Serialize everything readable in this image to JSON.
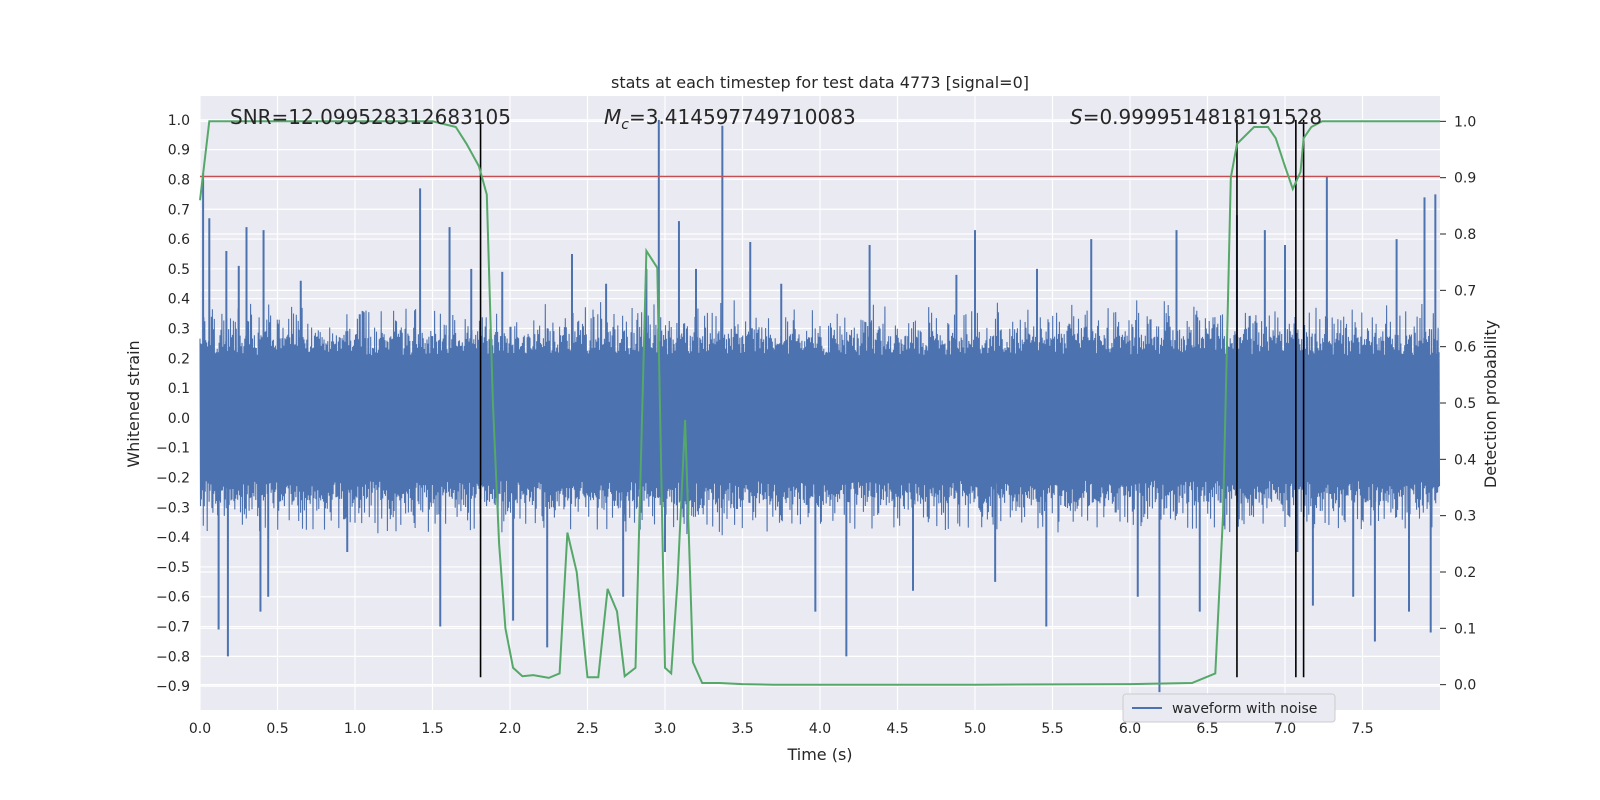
{
  "chart_data": {
    "type": "line",
    "title": "stats at each timestep for test data 4773 [signal=0]",
    "xlabel": "Time (s)",
    "ylabel": "Whitened strain",
    "y2label": "Detection probability",
    "xlim": [
      0.0,
      8.0
    ],
    "ylim": [
      -0.98,
      1.08
    ],
    "y2lim": [
      -0.045,
      1.045
    ],
    "xticks": [
      "0.0",
      "0.5",
      "1.0",
      "1.5",
      "2.0",
      "2.5",
      "3.0",
      "3.5",
      "4.0",
      "4.5",
      "5.0",
      "5.5",
      "6.0",
      "6.5",
      "7.0",
      "7.5"
    ],
    "yticks": [
      "-0.9",
      "-0.8",
      "-0.7",
      "-0.6",
      "-0.5",
      "-0.4",
      "-0.3",
      "-0.2",
      "-0.1",
      "0.0",
      "0.1",
      "0.2",
      "0.3",
      "0.4",
      "0.5",
      "0.6",
      "0.7",
      "0.8",
      "0.9",
      "1.0"
    ],
    "y2ticks": [
      "0.0",
      "0.1",
      "0.2",
      "0.3",
      "0.4",
      "0.5",
      "0.6",
      "0.7",
      "0.8",
      "0.9",
      "1.0"
    ],
    "grid": true,
    "legend": {
      "placement": "lower-right",
      "entries": [
        "waveform with noise"
      ]
    },
    "annotations": {
      "snr": "SNR=12.099528312683105",
      "mc_symbol": "M",
      "mc_sub": "c",
      "mc_value": "=3.414597749710083",
      "s_symbol": "S",
      "s_value": "=0.9999514818191528"
    },
    "series": [
      {
        "name": "waveform with noise",
        "color": "#4c72b0",
        "axis": "left",
        "kind": "noise",
        "base_envelope": 0.28,
        "duration": 8.0,
        "spikes": [
          {
            "x": 0.02,
            "y": 0.82
          },
          {
            "x": 0.06,
            "y": 0.67
          },
          {
            "x": 0.12,
            "y": -0.71
          },
          {
            "x": 0.17,
            "y": 0.56
          },
          {
            "x": 0.18,
            "y": -0.8
          },
          {
            "x": 0.25,
            "y": 0.51
          },
          {
            "x": 0.3,
            "y": 0.64
          },
          {
            "x": 0.39,
            "y": -0.65
          },
          {
            "x": 0.41,
            "y": 0.63
          },
          {
            "x": 0.44,
            "y": -0.6
          },
          {
            "x": 0.65,
            "y": 0.46
          },
          {
            "x": 0.95,
            "y": -0.45
          },
          {
            "x": 1.42,
            "y": 0.77
          },
          {
            "x": 1.55,
            "y": -0.7
          },
          {
            "x": 1.61,
            "y": 0.64
          },
          {
            "x": 1.75,
            "y": 0.5
          },
          {
            "x": 1.95,
            "y": 0.49
          },
          {
            "x": 2.02,
            "y": -0.68
          },
          {
            "x": 2.24,
            "y": -0.77
          },
          {
            "x": 2.4,
            "y": 0.55
          },
          {
            "x": 2.62,
            "y": 0.45
          },
          {
            "x": 2.73,
            "y": -0.6
          },
          {
            "x": 2.88,
            "y": 0.5
          },
          {
            "x": 2.96,
            "y": 1.0
          },
          {
            "x": 3.0,
            "y": -0.45
          },
          {
            "x": 3.09,
            "y": 0.66
          },
          {
            "x": 3.2,
            "y": 0.5
          },
          {
            "x": 3.37,
            "y": 0.98
          },
          {
            "x": 3.55,
            "y": 0.59
          },
          {
            "x": 3.75,
            "y": 0.45
          },
          {
            "x": 3.97,
            "y": -0.65
          },
          {
            "x": 4.17,
            "y": -0.8
          },
          {
            "x": 4.32,
            "y": 0.58
          },
          {
            "x": 4.6,
            "y": -0.58
          },
          {
            "x": 4.88,
            "y": 0.48
          },
          {
            "x": 5.0,
            "y": 0.63
          },
          {
            "x": 5.13,
            "y": -0.55
          },
          {
            "x": 5.4,
            "y": 0.5
          },
          {
            "x": 5.46,
            "y": -0.7
          },
          {
            "x": 5.75,
            "y": 0.6
          },
          {
            "x": 6.05,
            "y": -0.6
          },
          {
            "x": 6.19,
            "y": -0.92
          },
          {
            "x": 6.3,
            "y": 0.63
          },
          {
            "x": 6.45,
            "y": -0.65
          },
          {
            "x": 6.69,
            "y": 0.68
          },
          {
            "x": 6.87,
            "y": 0.63
          },
          {
            "x": 7.0,
            "y": 0.58
          },
          {
            "x": 7.08,
            "y": -0.45
          },
          {
            "x": 7.18,
            "y": -0.63
          },
          {
            "x": 7.27,
            "y": 0.81
          },
          {
            "x": 7.44,
            "y": -0.6
          },
          {
            "x": 7.58,
            "y": -0.75
          },
          {
            "x": 7.72,
            "y": 0.6
          },
          {
            "x": 7.8,
            "y": -0.65
          },
          {
            "x": 7.9,
            "y": 0.74
          },
          {
            "x": 7.94,
            "y": -0.72
          },
          {
            "x": 7.97,
            "y": 0.75
          }
        ]
      },
      {
        "name": "",
        "color": "#55a868",
        "axis": "right",
        "x": [
          0.0,
          0.06,
          0.12,
          0.5,
          1.0,
          1.5,
          1.65,
          1.72,
          1.8,
          1.85,
          1.89,
          1.93,
          1.97,
          2.02,
          2.08,
          2.15,
          2.25,
          2.32,
          2.37,
          2.43,
          2.5,
          2.57,
          2.63,
          2.69,
          2.74,
          2.81,
          2.88,
          2.95,
          3.0,
          3.04,
          3.08,
          3.13,
          3.18,
          3.24,
          3.29,
          3.35,
          3.5,
          3.7,
          4.0,
          5.0,
          6.0,
          6.4,
          6.55,
          6.6,
          6.65,
          6.69,
          6.8,
          6.89,
          6.94,
          7.0,
          7.05,
          7.1,
          7.12,
          7.17,
          7.24,
          7.3,
          7.4,
          8.0
        ],
        "y": [
          0.86,
          1.0,
          1.0,
          1.0,
          1.0,
          1.0,
          0.99,
          0.96,
          0.92,
          0.87,
          0.5,
          0.25,
          0.1,
          0.03,
          0.015,
          0.017,
          0.012,
          0.02,
          0.27,
          0.2,
          0.013,
          0.013,
          0.17,
          0.13,
          0.015,
          0.03,
          0.77,
          0.74,
          0.03,
          0.02,
          0.18,
          0.47,
          0.04,
          0.003,
          0.003,
          0.003,
          0.001,
          0.0,
          0.0,
          0.0,
          0.001,
          0.003,
          0.02,
          0.3,
          0.9,
          0.96,
          0.99,
          0.99,
          0.97,
          0.92,
          0.88,
          0.91,
          0.97,
          0.99,
          1.0,
          1.0,
          1.0,
          1.0
        ]
      }
    ],
    "threshold": {
      "axis": "left",
      "value": 0.81,
      "color": "#c44e52"
    },
    "vlines": [
      {
        "x": 1.81,
        "y0": -0.87,
        "y1": 1.0
      },
      {
        "x": 6.69,
        "y0": -0.87,
        "y1": 1.0
      },
      {
        "x": 7.07,
        "y0": -0.87,
        "y1": 1.0
      },
      {
        "x": 7.12,
        "y0": -0.87,
        "y1": 1.0
      }
    ]
  }
}
